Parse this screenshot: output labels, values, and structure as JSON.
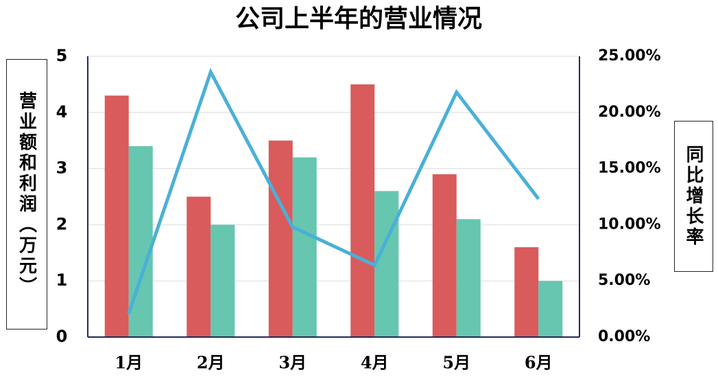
{
  "chart_data": {
    "type": "bar_line",
    "title": "公司上半年的营业情况",
    "ylabel": "营业额和利润（万元）",
    "y2label": "同比增长率",
    "categories": [
      "1月",
      "2月",
      "3月",
      "4月",
      "5月",
      "6月"
    ],
    "series": [
      {
        "type": "bar",
        "color": "#d95b5b",
        "values": [
          4.3,
          2.5,
          3.5,
          4.5,
          2.9,
          1.6
        ]
      },
      {
        "type": "bar",
        "color": "#66c6b0",
        "values": [
          3.4,
          2.0,
          3.2,
          2.6,
          2.1,
          1.0
        ]
      },
      {
        "type": "line",
        "axis": "y2",
        "color": "#4ab0d8",
        "values": [
          2.1,
          23.6,
          9.8,
          6.4,
          21.8,
          12.3
        ]
      }
    ],
    "ylim": [
      0,
      5
    ],
    "yticks": [
      0,
      1,
      2,
      3,
      4,
      5
    ],
    "y2lim": [
      0,
      25
    ],
    "y2ticks": [
      {
        "value": 0,
        "label": "0.00%"
      },
      {
        "value": 5,
        "label": "5.00%"
      },
      {
        "value": 10,
        "label": "10.00%"
      },
      {
        "value": 15,
        "label": "15.00%"
      },
      {
        "value": 20,
        "label": "20.00%"
      },
      {
        "value": 25,
        "label": "25.00%"
      }
    ],
    "grid": true
  }
}
